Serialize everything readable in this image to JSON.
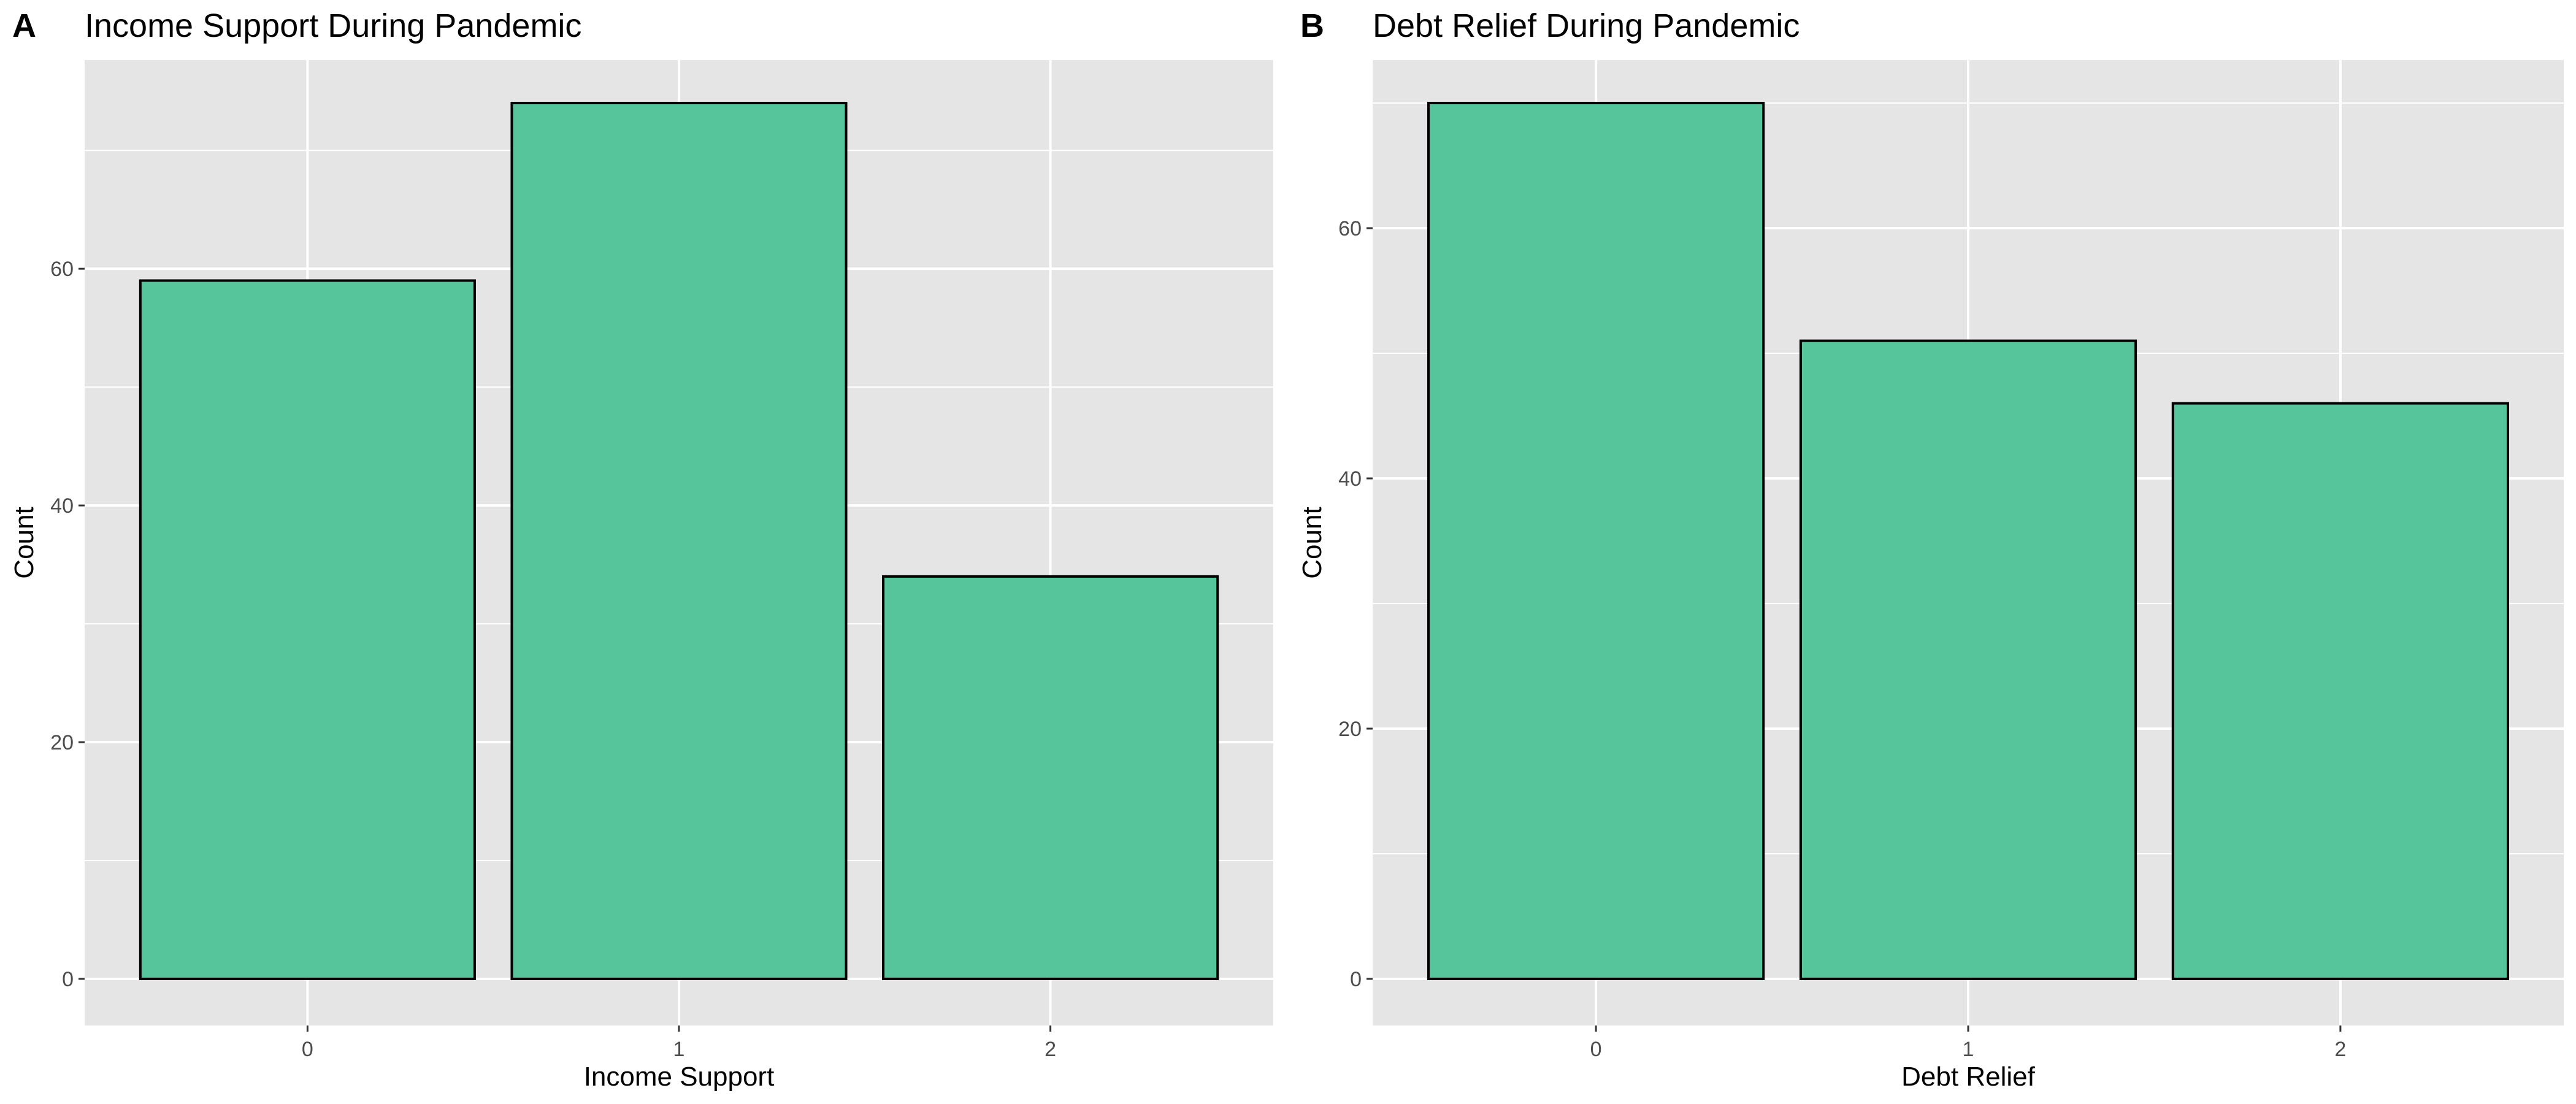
{
  "chart_data": [
    {
      "type": "bar",
      "panel_label": "A",
      "title": "Income Support During Pandemic",
      "xlabel": "Income Support",
      "ylabel": "Count",
      "categories": [
        "0",
        "1",
        "2"
      ],
      "values": [
        59,
        74,
        34
      ],
      "ylim": [
        0,
        77.7
      ],
      "yticks": [
        0,
        20,
        40,
        60
      ],
      "grid": true,
      "legend": "none",
      "colors": {
        "bar_fill": "#56c59b",
        "bar_stroke": "#000000",
        "panel_bg": "#e5e5e5",
        "grid": "#ffffff"
      }
    },
    {
      "type": "bar",
      "panel_label": "B",
      "title": "Debt Relief During Pandemic",
      "xlabel": "Debt Relief",
      "ylabel": "Count",
      "categories": [
        "0",
        "1",
        "2"
      ],
      "values": [
        70,
        51,
        46
      ],
      "ylim": [
        0,
        73.5
      ],
      "yticks": [
        0,
        20,
        40,
        60
      ],
      "grid": true,
      "legend": "none",
      "colors": {
        "bar_fill": "#56c59b",
        "bar_stroke": "#000000",
        "panel_bg": "#e5e5e5",
        "grid": "#ffffff"
      }
    }
  ]
}
